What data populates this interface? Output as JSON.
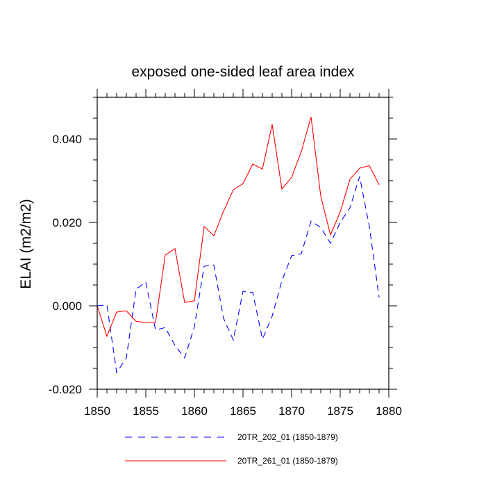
{
  "chart_data": {
    "type": "line",
    "title": "exposed one-sided leaf area index",
    "xlabel": "",
    "ylabel": "ELAI  (m2/m2)",
    "xlim": [
      1850,
      1880
    ],
    "ylim": [
      -0.02,
      0.05
    ],
    "x_ticks": [
      1850,
      1855,
      1860,
      1865,
      1870,
      1875,
      1880
    ],
    "x_tick_labels": [
      "1850",
      "1855",
      "1860",
      "1865",
      "1870",
      "1875",
      "1880"
    ],
    "y_ticks": [
      -0.02,
      0.0,
      0.02,
      0.04
    ],
    "y_tick_labels": [
      "-0.020",
      "0.000",
      "0.020",
      "0.040"
    ],
    "grid": false,
    "legend_position": "bottom",
    "x": [
      1850,
      1851,
      1852,
      1853,
      1854,
      1855,
      1856,
      1857,
      1858,
      1859,
      1860,
      1861,
      1862,
      1863,
      1864,
      1865,
      1866,
      1867,
      1868,
      1869,
      1870,
      1871,
      1872,
      1873,
      1874,
      1875,
      1876,
      1877,
      1878,
      1879
    ],
    "series": [
      {
        "name": "20TR_202_01 (1850-1879)",
        "color": "#0000ff",
        "style": "dashed",
        "values": [
          0.0,
          0.0002,
          -0.016,
          -0.0125,
          0.004,
          0.0057,
          -0.0058,
          -0.0052,
          -0.0095,
          -0.0125,
          -0.005,
          0.0095,
          0.0098,
          -0.003,
          -0.0082,
          0.0035,
          0.0032,
          -0.008,
          -0.0025,
          0.006,
          0.012,
          0.0125,
          0.0203,
          0.0188,
          0.015,
          0.02,
          0.0235,
          0.031,
          0.019,
          0.002
        ]
      },
      {
        "name": "20TR_261_01 (1850-1879)",
        "color": "#ff0000",
        "style": "solid",
        "values": [
          0.0,
          -0.0073,
          -0.0015,
          -0.0012,
          -0.0037,
          -0.004,
          -0.004,
          0.0122,
          0.0137,
          0.0008,
          0.0012,
          0.019,
          0.0168,
          0.0227,
          0.0278,
          0.0293,
          0.034,
          0.0328,
          0.0435,
          0.028,
          0.0308,
          0.037,
          0.0453,
          0.0263,
          0.017,
          0.0225,
          0.0303,
          0.033,
          0.0336,
          0.029
        ]
      }
    ]
  }
}
